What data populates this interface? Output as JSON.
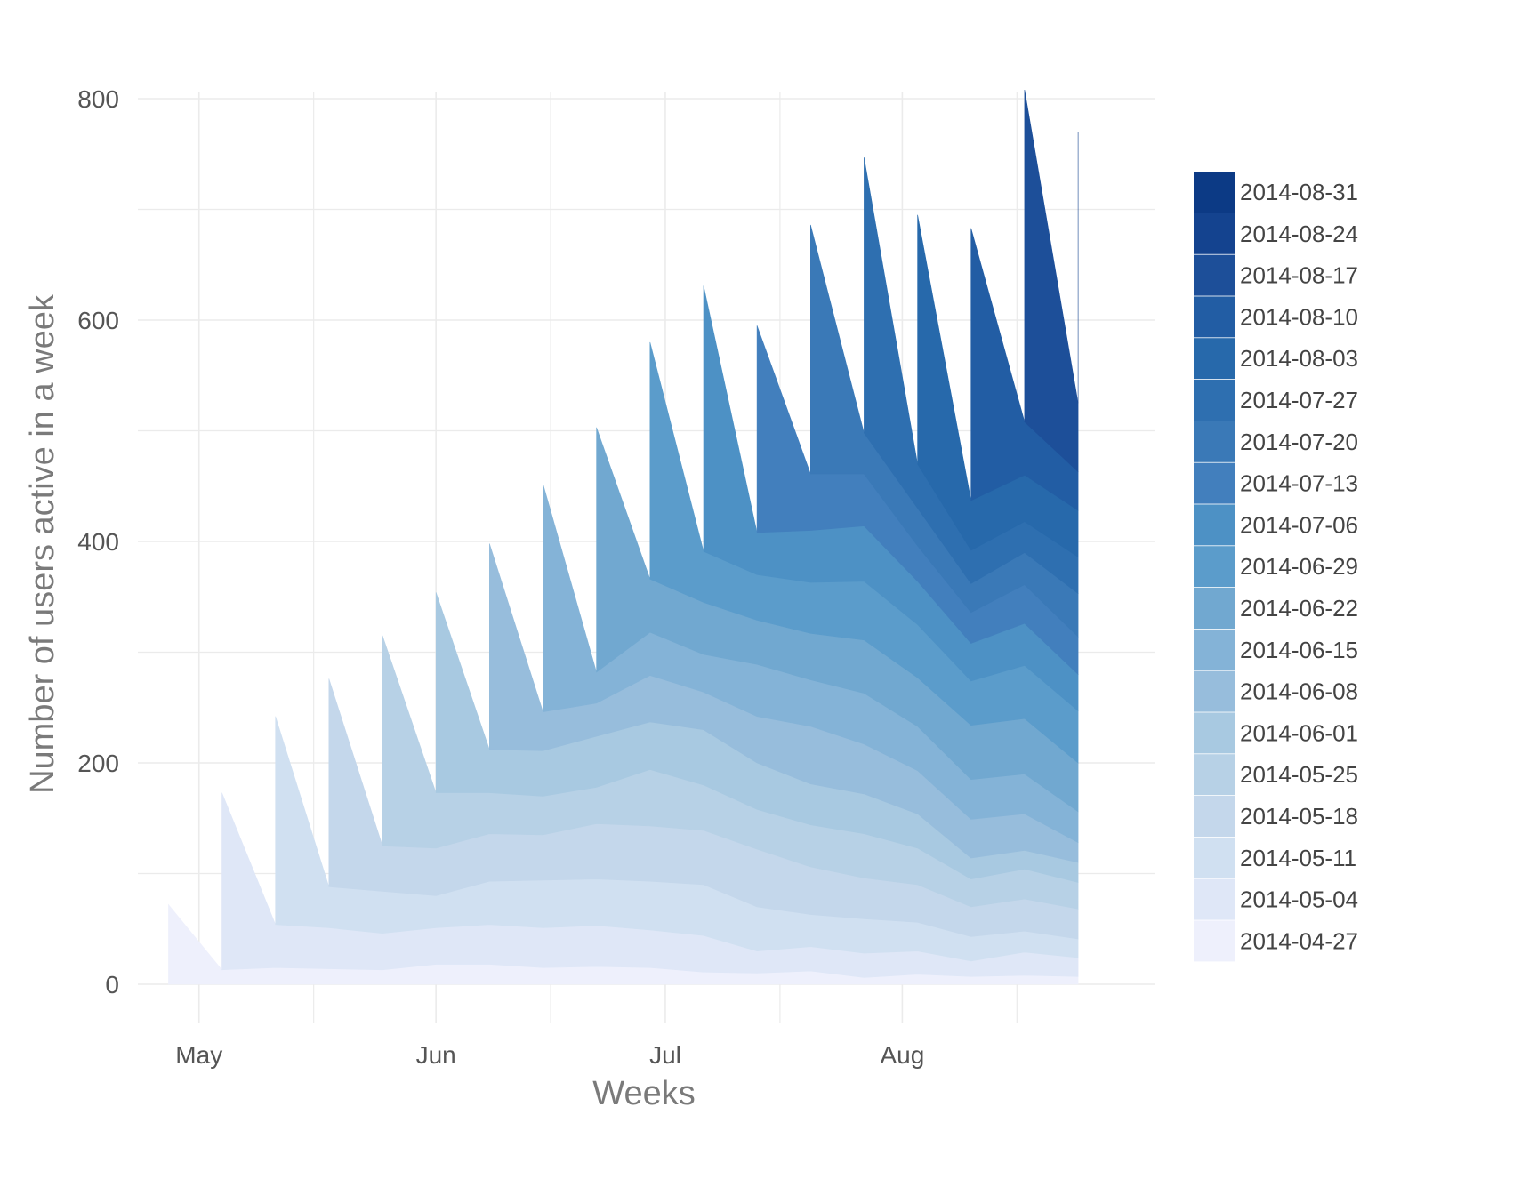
{
  "chart_data": {
    "type": "area",
    "stacked": true,
    "title": "",
    "xlabel": "Weeks",
    "ylabel": "Number of users active in a week",
    "ylim": [
      0,
      800
    ],
    "yticks": [
      0,
      200,
      400,
      600,
      800
    ],
    "xlim": [
      "2014-04-23",
      "2014-09-03"
    ],
    "xticks": [
      {
        "date": "2014-05-01",
        "label": "May"
      },
      {
        "date": "2014-06-01",
        "label": "Jun"
      },
      {
        "date": "2014-07-01",
        "label": "Jul"
      },
      {
        "date": "2014-08-01",
        "label": "Aug"
      }
    ],
    "x_minor_ticks": [
      "2014-05-16",
      "2014-06-16",
      "2014-07-16",
      "2014-08-16"
    ],
    "grid": true,
    "legend": {
      "position": "right",
      "title": ""
    },
    "x": [
      "2014-04-27",
      "2014-05-04",
      "2014-05-11",
      "2014-05-18",
      "2014-05-25",
      "2014-06-01",
      "2014-06-08",
      "2014-06-15",
      "2014-06-22",
      "2014-06-29",
      "2014-07-06",
      "2014-07-13",
      "2014-07-20",
      "2014-07-27",
      "2014-08-03",
      "2014-08-10",
      "2014-08-17",
      "2014-08-24",
      "2014-08-31"
    ],
    "series": [
      {
        "name": "2014-04-27",
        "color": "#eef0fc",
        "values": [
          72,
          13,
          15,
          14,
          13,
          18,
          18,
          15,
          16,
          15,
          11,
          10,
          12,
          6,
          9,
          7,
          8,
          7,
          null
        ]
      },
      {
        "name": "2014-05-04",
        "color": "#dfe7f7",
        "values": [
          null,
          160,
          39,
          37,
          33,
          33,
          36,
          36,
          37,
          34,
          33,
          20,
          22,
          22,
          21,
          14,
          21,
          17,
          null
        ]
      },
      {
        "name": "2014-05-11",
        "color": "#d0e0f1",
        "values": [
          null,
          null,
          188,
          37,
          38,
          29,
          39,
          43,
          42,
          44,
          46,
          40,
          29,
          31,
          26,
          22,
          19,
          17,
          null
        ]
      },
      {
        "name": "2014-05-18",
        "color": "#c4d7eb",
        "values": [
          null,
          null,
          null,
          188,
          41,
          43,
          43,
          41,
          50,
          50,
          49,
          52,
          43,
          37,
          34,
          27,
          29,
          27,
          null
        ]
      },
      {
        "name": "2014-05-25",
        "color": "#b7d1e6",
        "values": [
          null,
          null,
          null,
          null,
          190,
          50,
          37,
          35,
          33,
          51,
          41,
          36,
          38,
          40,
          33,
          25,
          27,
          24,
          null
        ]
      },
      {
        "name": "2014-06-01",
        "color": "#a8c9e1",
        "values": [
          null,
          null,
          null,
          null,
          null,
          181,
          39,
          41,
          46,
          43,
          50,
          42,
          37,
          36,
          31,
          19,
          17,
          18,
          null
        ]
      },
      {
        "name": "2014-06-08",
        "color": "#97bddc",
        "values": [
          null,
          null,
          null,
          null,
          null,
          null,
          186,
          35,
          30,
          42,
          34,
          42,
          52,
          45,
          39,
          35,
          33,
          18,
          null
        ]
      },
      {
        "name": "2014-06-15",
        "color": "#84b3d7",
        "values": [
          null,
          null,
          null,
          null,
          null,
          null,
          null,
          206,
          28,
          39,
          34,
          47,
          42,
          46,
          40,
          36,
          36,
          28,
          null
        ]
      },
      {
        "name": "2014-06-22",
        "color": "#71a8d0",
        "values": [
          null,
          null,
          null,
          null,
          null,
          null,
          null,
          null,
          221,
          48,
          47,
          40,
          42,
          48,
          44,
          49,
          50,
          44,
          null
        ]
      },
      {
        "name": "2014-06-29",
        "color": "#5b9ccb",
        "values": [
          null,
          null,
          null,
          null,
          null,
          null,
          null,
          null,
          null,
          214,
          46,
          41,
          46,
          53,
          48,
          40,
          48,
          47,
          null
        ]
      },
      {
        "name": "2014-07-06",
        "color": "#4d91c5",
        "values": [
          null,
          null,
          null,
          null,
          null,
          null,
          null,
          null,
          null,
          null,
          240,
          38,
          47,
          50,
          39,
          34,
          38,
          33,
          null
        ]
      },
      {
        "name": "2014-07-13",
        "color": "#427fbd",
        "values": [
          null,
          null,
          null,
          null,
          null,
          null,
          null,
          null,
          null,
          null,
          null,
          187,
          51,
          47,
          32,
          28,
          35,
          34,
          null
        ]
      },
      {
        "name": "2014-07-20",
        "color": "#3a79b7",
        "values": [
          null,
          null,
          null,
          null,
          null,
          null,
          null,
          null,
          null,
          null,
          null,
          null,
          225,
          37,
          34,
          26,
          29,
          39,
          null
        ]
      },
      {
        "name": "2014-07-27",
        "color": "#2e6fb0",
        "values": [
          null,
          null,
          null,
          null,
          null,
          null,
          null,
          null,
          null,
          null,
          null,
          null,
          null,
          249,
          40,
          30,
          28,
          33,
          null
        ]
      },
      {
        "name": "2014-08-03",
        "color": "#2769ab",
        "values": [
          null,
          null,
          null,
          null,
          null,
          null,
          null,
          null,
          null,
          null,
          null,
          null,
          null,
          null,
          225,
          45,
          42,
          42,
          null
        ]
      },
      {
        "name": "2014-08-10",
        "color": "#225da4",
        "values": [
          null,
          null,
          null,
          null,
          null,
          null,
          null,
          null,
          null,
          null,
          null,
          null,
          null,
          null,
          null,
          246,
          48,
          35,
          null
        ]
      },
      {
        "name": "2014-08-17",
        "color": "#1d4f99",
        "values": [
          null,
          null,
          null,
          null,
          null,
          null,
          null,
          null,
          null,
          null,
          null,
          null,
          null,
          null,
          null,
          null,
          300,
          62,
          null
        ]
      },
      {
        "name": "2014-08-24",
        "color": "#14438f",
        "values": [
          null,
          null,
          null,
          null,
          null,
          null,
          null,
          null,
          null,
          null,
          null,
          null,
          null,
          null,
          null,
          null,
          null,
          245,
          null
        ]
      },
      {
        "name": "2014-08-31",
        "color": "#0c3a85",
        "values": [
          null,
          null,
          null,
          null,
          null,
          null,
          null,
          null,
          null,
          null,
          null,
          null,
          null,
          null,
          null,
          null,
          null,
          null,
          null
        ]
      }
    ]
  }
}
